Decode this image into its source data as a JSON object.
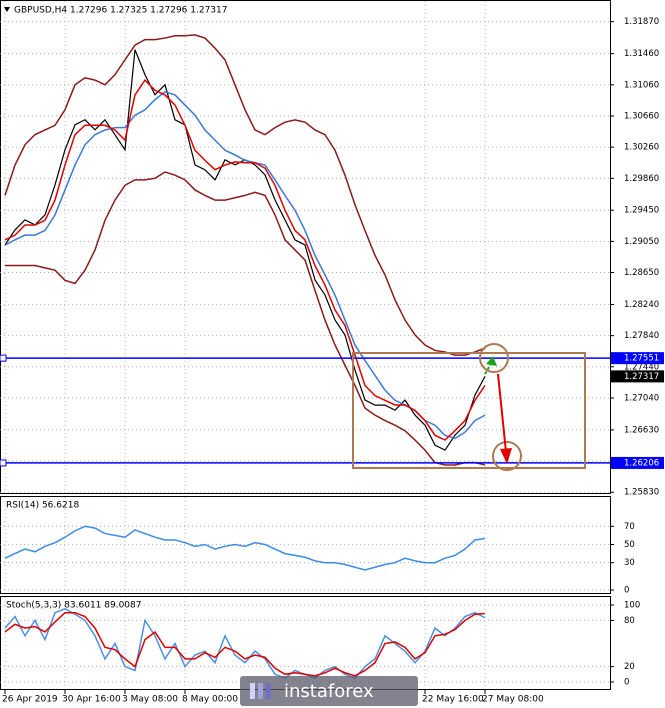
{
  "chart_data": [
    {
      "type": "line",
      "title": "GBPUSD,H4  1.27296 1.27325 1.27296 1.27317",
      "categories": [
        "26 Apr 2019",
        null,
        null,
        null,
        null,
        null,
        "30 Apr 16:00",
        null,
        null,
        null,
        null,
        null,
        "3 May 08:00",
        null,
        null,
        null,
        null,
        null,
        "8 May 00:00",
        null,
        null,
        null,
        null,
        null,
        null,
        null,
        null,
        null,
        null,
        null,
        null,
        null,
        null,
        null,
        null,
        null,
        null,
        null,
        null,
        null,
        null,
        null,
        "22 May 16:00",
        null,
        null,
        null,
        null,
        null,
        "27 May 08:00"
      ],
      "series": [
        {
          "color": "#000000",
          "values": [
            1.29004,
            1.29197,
            1.29326,
            1.29261,
            1.2939,
            1.29775,
            1.30225,
            1.30546,
            1.30611,
            1.30482,
            1.30611,
            1.30418,
            1.30225,
            1.3151,
            1.31189,
            1.30932,
            1.3106,
            1.30611,
            1.30546,
            1.30032,
            1.29968,
            1.2984,
            1.30097,
            1.30032,
            1.30097,
            1.30032,
            1.29904,
            1.29583,
            1.29326,
            1.29069,
            1.29004,
            1.28555,
            1.28362,
            1.28041,
            1.27848,
            1.27398,
            1.27013,
            1.26948,
            1.26948,
            1.26884,
            1.27013,
            1.2682,
            1.26691,
            1.26434,
            1.2637,
            1.26563,
            1.26691,
            1.27077,
            1.27317
          ]
        },
        {
          "color": "#8b1a1a",
          "values": [
            1.2964,
            1.3003,
            1.3029,
            1.3042,
            1.3048,
            1.3054,
            1.3074,
            1.3106,
            1.3115,
            1.3112,
            1.3106,
            1.3119,
            1.3138,
            1.3157,
            1.3164,
            1.3164,
            1.3166,
            1.3169,
            1.3169,
            1.317,
            1.3166,
            1.3153,
            1.3138,
            1.3106,
            1.3074,
            1.3048,
            1.3042,
            1.3051,
            1.3058,
            1.3061,
            1.3058,
            1.3048,
            1.3042,
            1.3022,
            1.299,
            1.2952,
            1.2919,
            1.2887,
            1.2862,
            1.283,
            1.2804,
            1.2785,
            1.2772,
            1.2765,
            1.2763,
            1.2759,
            1.2759,
            1.2763,
            1.2768
          ]
        },
        {
          "color": "#8b1a1a",
          "values": [
            1.2874,
            1.2874,
            1.2874,
            1.2874,
            1.2871,
            1.2868,
            1.2855,
            1.2851,
            1.2868,
            1.2894,
            1.2932,
            1.2958,
            1.2977,
            1.2984,
            1.2984,
            1.2986,
            1.2994,
            1.299,
            1.2984,
            1.2971,
            1.2964,
            1.2958,
            1.2958,
            1.2961,
            1.2964,
            1.2968,
            1.2964,
            1.2939,
            1.2907,
            1.2894,
            1.2881,
            1.2842,
            1.2804,
            1.2772,
            1.2746,
            1.272,
            1.2691,
            1.2682,
            1.2675,
            1.2669,
            1.2662,
            1.265,
            1.2637,
            1.2621,
            1.2618,
            1.2618,
            1.2621,
            1.2621,
            1.2618
          ]
        },
        {
          "color": "#3c78d8",
          "values": [
            1.29,
            1.2907,
            1.2913,
            1.2913,
            1.2919,
            1.2939,
            1.2971,
            1.3003,
            1.3029,
            1.3042,
            1.3048,
            1.3051,
            1.3051,
            1.3067,
            1.3074,
            1.3087,
            1.3097,
            1.3093,
            1.308,
            1.3067,
            1.3048,
            1.3035,
            1.3022,
            1.3016,
            1.3009,
            1.3006,
            1.3003,
            1.2984,
            1.2964,
            1.2945,
            1.2919,
            1.2887,
            1.2862,
            1.2836,
            1.2804,
            1.2772,
            1.2752,
            1.2733,
            1.2714,
            1.2701,
            1.2695,
            1.2688,
            1.2675,
            1.2669,
            1.2656,
            1.2652,
            1.266,
            1.2675,
            1.2682
          ]
        },
        {
          "color": "#e00000",
          "values": [
            1.2907,
            1.2913,
            1.2926,
            1.2926,
            1.2932,
            1.2958,
            1.3003,
            1.3042,
            1.3054,
            1.3054,
            1.3054,
            1.3048,
            1.3035,
            1.3093,
            1.3112,
            1.3099,
            1.3093,
            1.308,
            1.3054,
            1.3022,
            1.3009,
            1.2997,
            1.3003,
            1.3007,
            1.3006,
            1.3006,
            1.2999,
            1.2977,
            1.2945,
            1.2919,
            1.2907,
            1.2874,
            1.2849,
            1.2817,
            1.2797,
            1.2759,
            1.272,
            1.2707,
            1.2701,
            1.2695,
            1.2695,
            1.2688,
            1.2675,
            1.2656,
            1.265,
            1.2662,
            1.2675,
            1.2701,
            1.272
          ]
        }
      ],
      "ylim": [
        1.2582,
        1.3211
      ],
      "yticks": [
        {
          "value": 1.3187,
          "label": "1.31870"
        },
        {
          "value": 1.3146,
          "label": "1.31460"
        },
        {
          "value": 1.3106,
          "label": "1.31060"
        },
        {
          "value": 1.3066,
          "label": "1.30660"
        },
        {
          "value": 1.3026,
          "label": "1.30260"
        },
        {
          "value": 1.2986,
          "label": "1.29860"
        },
        {
          "value": 1.2945,
          "label": "1.29450"
        },
        {
          "value": 1.2905,
          "label": "1.29050"
        },
        {
          "value": 1.2865,
          "label": "1.28650"
        },
        {
          "value": 1.2824,
          "label": "1.28240"
        },
        {
          "value": 1.2784,
          "label": "1.27840"
        },
        {
          "value": 1.2744,
          "label": "1.27440"
        },
        {
          "value": 1.2704,
          "label": "1.27040"
        },
        {
          "value": 1.2663,
          "label": "1.26630"
        },
        {
          "value": 1.2623,
          "label": "1.26230"
        },
        {
          "value": 1.2583,
          "label": "1.25830"
        }
      ],
      "levels": [
        1.27551,
        1.26206
      ],
      "level_color": "#0000ff",
      "last_price": 1.27317,
      "grid": true,
      "watermark": "instaforex"
    },
    {
      "type": "line",
      "title": "RSI(14) 56.6218",
      "series": [
        {
          "color": "#3c8ce7",
          "values": [
            35,
            40,
            45,
            42,
            48,
            52,
            58,
            65,
            70,
            68,
            62,
            60,
            58,
            66,
            62,
            58,
            55,
            55,
            52,
            48,
            50,
            45,
            48,
            50,
            48,
            52,
            50,
            45,
            40,
            38,
            36,
            32,
            30,
            30,
            28,
            25,
            22,
            25,
            28,
            30,
            35,
            32,
            30,
            30,
            35,
            38,
            45,
            55,
            56.6218
          ]
        }
      ],
      "ylim": [
        0,
        100
      ],
      "yticks": [
        70,
        50,
        30,
        0
      ],
      "grid": true
    },
    {
      "type": "line",
      "title": "Stoch(5,3,3) 83.6011 89.0087",
      "series": [
        {
          "color": "#4a90e2",
          "values": [
            70,
            85,
            60,
            80,
            55,
            90,
            95,
            88,
            80,
            60,
            30,
            50,
            20,
            15,
            80,
            60,
            30,
            50,
            20,
            35,
            40,
            25,
            60,
            35,
            25,
            40,
            30,
            10,
            5,
            15,
            10,
            5,
            15,
            20,
            10,
            5,
            20,
            30,
            60,
            50,
            40,
            25,
            40,
            70,
            60,
            70,
            85,
            90,
            83.6011
          ]
        },
        {
          "color": "#e00000",
          "values": [
            65,
            75,
            70,
            72,
            65,
            78,
            90,
            90,
            85,
            70,
            45,
            42,
            30,
            20,
            55,
            65,
            45,
            45,
            30,
            30,
            38,
            32,
            45,
            40,
            30,
            35,
            32,
            18,
            10,
            12,
            10,
            8,
            12,
            18,
            12,
            8,
            15,
            25,
            50,
            52,
            45,
            30,
            38,
            60,
            62,
            68,
            80,
            88,
            89.0087
          ]
        }
      ],
      "ylim": [
        0,
        100
      ],
      "yticks": [
        100,
        80,
        20,
        0
      ],
      "grid": true
    }
  ]
}
